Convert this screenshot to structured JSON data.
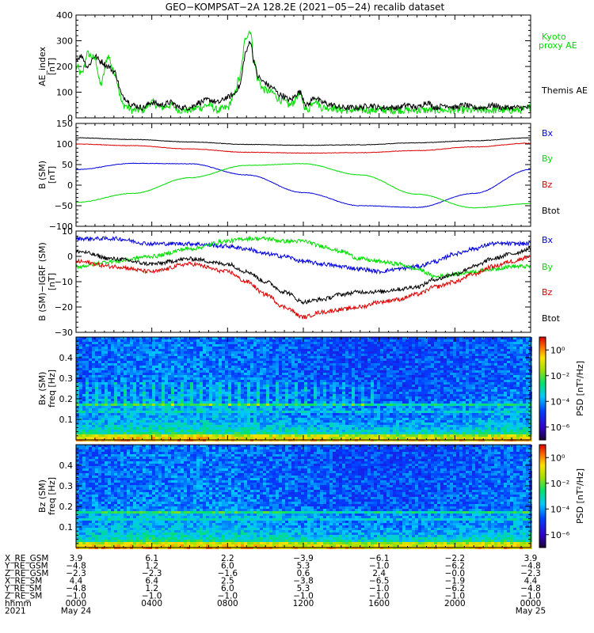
{
  "title": "GEO−KOMPSAT−2A 128.2E (2021−05−24) recalib dataset",
  "chart_data": [
    {
      "type": "line",
      "panel": "ae",
      "ylabel": [
        "AE_index",
        "[nT]"
      ],
      "ylim": [
        0,
        400
      ],
      "yticks": [
        "0",
        "100",
        "200",
        "300",
        "400"
      ],
      "ytick_values": [
        0,
        100,
        200,
        300,
        400
      ],
      "legend_placement": "right",
      "series": [
        {
          "name": "Kyoto",
          "name2": "proxy AE",
          "color": "#00dd00",
          "x": [
            0,
            0.3,
            0.6,
            1,
            1.3,
            1.7,
            2,
            2.5,
            3,
            3.5,
            4,
            4.5,
            5,
            5.5,
            6,
            6.5,
            7,
            7.5,
            8,
            8.3,
            8.6,
            9,
            9.2,
            9.4,
            9.6,
            9.9,
            10.3,
            10.8,
            11.3,
            11.8,
            12.2,
            12.6,
            13,
            13.5,
            14,
            14.5,
            15,
            15.5,
            16,
            16.5,
            17,
            17.5,
            18,
            18.5,
            19,
            19.5,
            20,
            20.5,
            21,
            21.5,
            22,
            22.5,
            23,
            23.5,
            24
          ],
          "y": [
            200,
            170,
            250,
            230,
            130,
            240,
            180,
            50,
            30,
            30,
            60,
            40,
            50,
            30,
            30,
            40,
            50,
            30,
            40,
            80,
            150,
            320,
            340,
            220,
            150,
            110,
            100,
            70,
            50,
            90,
            30,
            70,
            40,
            40,
            30,
            30,
            30,
            30,
            30,
            30,
            30,
            30,
            30,
            30,
            30,
            30,
            30,
            30,
            30,
            30,
            30,
            30,
            30,
            30,
            40
          ]
        },
        {
          "name": "Themis AE",
          "color": "#000000",
          "x": [
            0,
            0.3,
            0.6,
            1,
            1.3,
            1.7,
            2,
            2.5,
            3,
            3.5,
            4,
            4.5,
            5,
            5.5,
            6,
            6.5,
            7,
            7.5,
            8,
            8.3,
            8.6,
            9,
            9.2,
            9.4,
            9.6,
            9.9,
            10.3,
            10.8,
            11.3,
            11.8,
            12.2,
            12.6,
            13,
            13.5,
            14,
            14.5,
            15,
            15.5,
            16,
            16.5,
            17,
            17.5,
            18,
            18.5,
            19,
            19.5,
            20,
            20.5,
            21,
            21.5,
            22,
            22.5,
            23,
            23.5,
            24
          ],
          "y": [
            230,
            240,
            200,
            240,
            220,
            200,
            180,
            80,
            50,
            40,
            60,
            50,
            60,
            40,
            40,
            60,
            70,
            60,
            80,
            90,
            120,
            260,
            300,
            220,
            160,
            140,
            120,
            90,
            70,
            100,
            50,
            80,
            60,
            50,
            40,
            40,
            40,
            50,
            40,
            40,
            40,
            50,
            40,
            60,
            40,
            50,
            40,
            50,
            40,
            40,
            50,
            40,
            40,
            40,
            40
          ]
        }
      ]
    },
    {
      "type": "line",
      "panel": "bsm",
      "ylabel": [
        "B (SM)",
        "[nT]"
      ],
      "ylim": [
        -100,
        150
      ],
      "yticks": [
        "−100",
        "−50",
        "0",
        "50",
        "100",
        "150"
      ],
      "ytick_values": [
        -100,
        -50,
        0,
        50,
        100,
        150
      ],
      "legend_placement": "right",
      "series": [
        {
          "name": "Bx",
          "color": "#0000dd",
          "x": [
            0,
            3,
            6,
            9,
            12,
            15,
            18,
            21,
            24
          ],
          "y": [
            38,
            53,
            52,
            25,
            -18,
            -50,
            -54,
            -20,
            38
          ]
        },
        {
          "name": "By",
          "color": "#00dd00",
          "x": [
            0,
            3,
            6,
            9,
            12,
            15,
            18,
            21,
            24
          ],
          "y": [
            -42,
            -20,
            18,
            48,
            52,
            25,
            -22,
            -55,
            -45
          ]
        },
        {
          "name": "Bz",
          "color": "#dd0000",
          "x": [
            0,
            3,
            6,
            9,
            12,
            15,
            18,
            21,
            24
          ],
          "y": [
            100,
            96,
            88,
            80,
            78,
            79,
            84,
            93,
            102
          ]
        },
        {
          "name": "Btot",
          "color": "#000000",
          "x": [
            0,
            3,
            6,
            9,
            12,
            15,
            18,
            21,
            24
          ],
          "y": [
            115,
            111,
            105,
            99,
            97,
            98,
            103,
            108,
            115
          ]
        }
      ]
    },
    {
      "type": "line",
      "panel": "bdiff",
      "ylabel": [
        "B (SM)−IGRF (SM)",
        "[nT]"
      ],
      "ylim": [
        -30,
        10
      ],
      "yticks": [
        "−30",
        "−20",
        "−10",
        "0",
        "10"
      ],
      "ytick_values": [
        -30,
        -20,
        -10,
        0,
        10
      ],
      "legend_placement": "right",
      "series": [
        {
          "name": "Bx",
          "color": "#0000dd",
          "x": [
            0,
            2,
            4,
            6,
            8,
            9,
            10,
            11,
            12,
            13,
            14,
            15,
            16,
            17,
            18,
            19,
            20,
            21,
            22,
            23,
            24
          ],
          "y": [
            7,
            7,
            5,
            5,
            4,
            3,
            1,
            0,
            -2,
            -3,
            -4,
            -5,
            -6,
            -5,
            -4,
            -2,
            1,
            3,
            5,
            5,
            5
          ]
        },
        {
          "name": "By",
          "color": "#00dd00",
          "x": [
            0,
            2,
            4,
            6,
            8,
            9,
            10,
            11,
            12,
            13,
            14,
            15,
            16,
            17,
            18,
            19,
            20,
            21,
            22,
            23,
            24
          ],
          "y": [
            -4,
            -2,
            0,
            3,
            6,
            7,
            7,
            6,
            6,
            4,
            2,
            -1,
            -2,
            -3,
            -5,
            -8,
            -7,
            -6,
            -5,
            -4,
            -4
          ]
        },
        {
          "name": "Bz",
          "color": "#dd0000",
          "x": [
            0,
            2,
            4,
            6,
            8,
            9,
            10,
            11,
            12,
            13,
            14,
            15,
            16,
            17,
            18,
            19,
            20,
            21,
            22,
            23,
            24
          ],
          "y": [
            -2,
            -4,
            -6,
            -3,
            -6,
            -10,
            -15,
            -20,
            -24,
            -22,
            -21,
            -20,
            -18,
            -17,
            -15,
            -12,
            -10,
            -7,
            -4,
            -2,
            0
          ]
        },
        {
          "name": "Btot",
          "color": "#000000",
          "x": [
            0,
            2,
            4,
            6,
            8,
            9,
            10,
            11,
            12,
            13,
            14,
            15,
            16,
            17,
            18,
            19,
            20,
            21,
            22,
            23,
            24
          ],
          "y": [
            2,
            -1,
            -3,
            -1,
            -3,
            -6,
            -10,
            -14,
            -18,
            -17,
            -15,
            -14,
            -14,
            -13,
            -12,
            -9,
            -7,
            -4,
            -1,
            1,
            3
          ]
        }
      ]
    },
    {
      "type": "heatmap",
      "panel": "psd_bx",
      "ylabel": [
        "Bx (SM)",
        "freq  [Hz]"
      ],
      "ylim": [
        0,
        0.5
      ],
      "yticks": [
        "0.1",
        "0.2",
        "0.3",
        "0.4"
      ],
      "ytick_values": [
        0.1,
        0.2,
        0.3,
        0.4
      ],
      "colorbar_label": "PSD  [nT²/Hz]",
      "colorbar_ticks": [
        "10⁰",
        "10⁻²",
        "10⁻⁴",
        "10⁻⁶"
      ],
      "colorbar_tick_exponents": [
        0,
        -2,
        -4,
        -6
      ],
      "colorbar_range_exponents": [
        -7,
        1
      ],
      "features": {
        "line_freqs": [
          0.17,
          0.14
        ],
        "low_freq_enhanced": true
      }
    },
    {
      "type": "heatmap",
      "panel": "psd_bz",
      "ylabel": [
        "Bz (SM)",
        "freq  [Hz]"
      ],
      "ylim": [
        0,
        0.5
      ],
      "yticks": [
        "0.1",
        "0.2",
        "0.3",
        "0.4"
      ],
      "ytick_values": [
        0.1,
        0.2,
        0.3,
        0.4
      ],
      "colorbar_label": "PSD  [nT²/Hz]",
      "colorbar_ticks": [
        "10⁰",
        "10⁻²",
        "10⁻⁴",
        "10⁻⁶"
      ],
      "colorbar_tick_exponents": [
        0,
        -2,
        -4,
        -6
      ],
      "colorbar_range_exponents": [
        -7,
        1
      ],
      "features": {
        "line_freqs": [
          0.17,
          0.14
        ],
        "low_freq_enhanced": true
      }
    }
  ],
  "x_axis": {
    "range_hours": [
      0,
      24
    ],
    "tick_hours": [
      0,
      4,
      8,
      12,
      16,
      20,
      24
    ],
    "rows": [
      {
        "label": "X_RE_GSM",
        "values": [
          "3.9",
          "6.1",
          "2.2",
          "−3.9",
          "−6.1",
          "−2.2",
          "3.9"
        ]
      },
      {
        "label": "Y_RE_GSM",
        "values": [
          "−4.8",
          "1.2",
          "6.0",
          "5.3",
          "−1.0",
          "−6.2",
          "−4.8"
        ]
      },
      {
        "label": "Z_RE_GSM",
        "values": [
          "−2.3",
          "−2.3",
          "−1.6",
          "0.6",
          "2.4",
          "−0.0",
          "−2.3"
        ]
      },
      {
        "label": "X_RE_SM",
        "values": [
          "4.4",
          "6.4",
          "2.5",
          "−3.8",
          "−6.5",
          "−1.9",
          "4.4"
        ]
      },
      {
        "label": "Y_RE_SM",
        "values": [
          "−4.8",
          "1.2",
          "6.0",
          "5.3",
          "−1.0",
          "−6.2",
          "−4.8"
        ]
      },
      {
        "label": "Z_RE_SM",
        "values": [
          "−1.0",
          "−1.0",
          "−1.0",
          "−1.0",
          "−1.0",
          "−1.0",
          "−1.0"
        ]
      },
      {
        "label": "hhmm",
        "values": [
          "0000",
          "0400",
          "0800",
          "1200",
          "1600",
          "2000",
          "0000"
        ]
      },
      {
        "label": "2021",
        "values": [
          "May 24",
          "",
          "",
          "",
          "",
          "",
          "May 25"
        ]
      }
    ]
  }
}
